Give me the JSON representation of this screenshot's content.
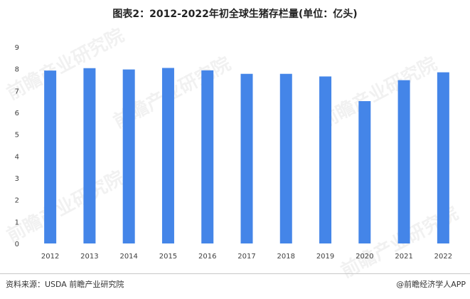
{
  "chart_data": {
    "type": "bar",
    "title": "图表2：2012-2022年初全球生猪存栏量(单位：亿头)",
    "categories": [
      "2012",
      "2013",
      "2014",
      "2015",
      "2016",
      "2017",
      "2018",
      "2019",
      "2020",
      "2021",
      "2022"
    ],
    "series": [
      {
        "values": [
          7.92,
          8.03,
          7.97,
          8.04,
          7.93,
          7.77,
          7.77,
          7.65,
          6.52,
          7.48,
          7.84
        ]
      }
    ],
    "ylim": [
      0,
      9
    ],
    "yticks": [
      0,
      1,
      2,
      3,
      4,
      5,
      6,
      7,
      8,
      9
    ],
    "xlabel": "",
    "ylabel": "",
    "bar_color": "#4485e8",
    "grid": false,
    "legend": "none"
  },
  "footer": {
    "source": "资料来源：USDA 前瞻产业研究院",
    "brand": "@前瞻经济学人APP"
  },
  "watermark": "前瞻产业研究院"
}
